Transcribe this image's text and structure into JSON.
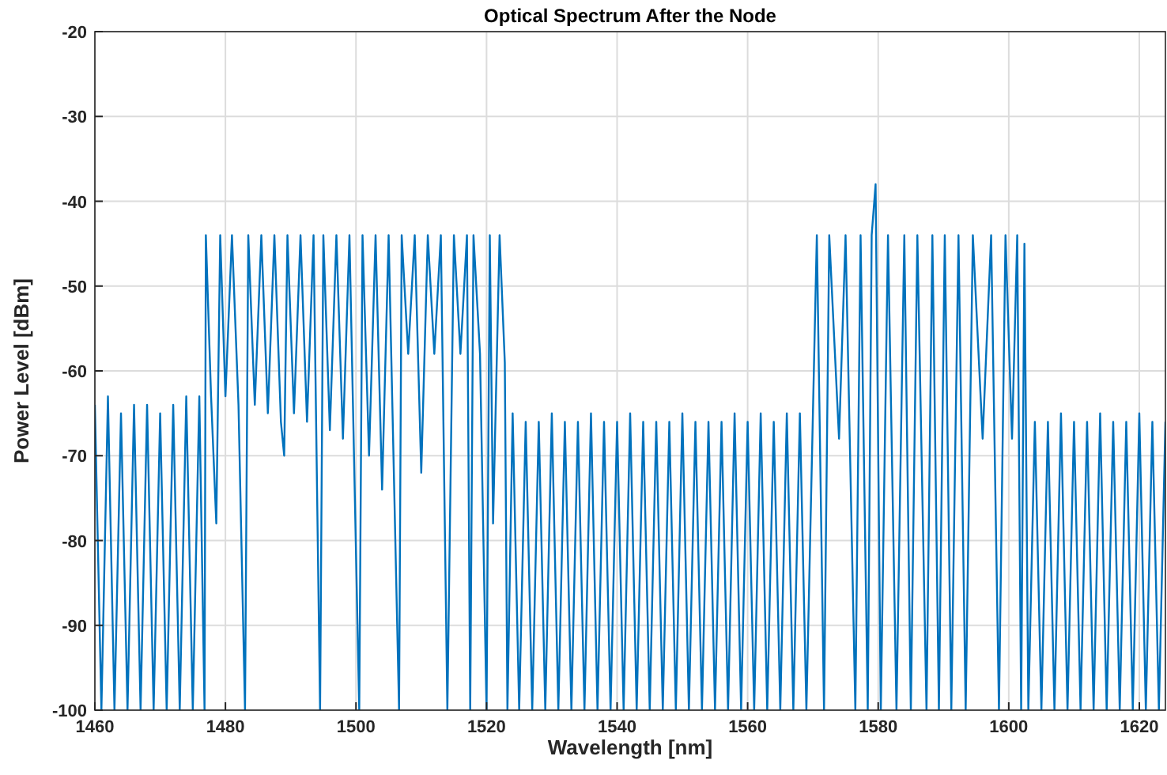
{
  "chart_data": {
    "type": "line",
    "title": "Optical Spectrum After the Node",
    "xlabel": "Wavelength [nm]",
    "ylabel": "Power Level [dBm]",
    "xlim": [
      1460,
      1624
    ],
    "ylim": [
      -100,
      -20
    ],
    "xticks": [
      1460,
      1480,
      1500,
      1520,
      1540,
      1560,
      1580,
      1600,
      1620
    ],
    "yticks": [
      -100,
      -90,
      -80,
      -70,
      -60,
      -50,
      -40,
      -30,
      -20
    ],
    "grid": true,
    "marker": "none",
    "line_style": "solid",
    "series": [
      {
        "color": "#0072bd",
        "x": [
          1460,
          1461,
          1462,
          1463,
          1464,
          1465,
          1466,
          1467,
          1468,
          1469,
          1470,
          1471,
          1472,
          1473,
          1474,
          1475,
          1476,
          1476.8,
          1477,
          1477.8,
          1478.6,
          1479.2,
          1480,
          1481,
          1482,
          1483,
          1483.5,
          1484.5,
          1485.5,
          1486.5,
          1487.5,
          1488.5,
          1489,
          1489.5,
          1490.5,
          1491.5,
          1492.5,
          1493.5,
          1494.5,
          1495,
          1496,
          1497,
          1498,
          1499,
          1500.5,
          1501,
          1502,
          1503,
          1504,
          1505,
          1506.6,
          1507,
          1508,
          1509,
          1510,
          1511,
          1512,
          1513,
          1514,
          1515,
          1516,
          1517,
          1517.5,
          1518,
          1519,
          1520,
          1520.5,
          1521,
          1522,
          1522.8,
          1523.2,
          1524,
          1525,
          1526,
          1527,
          1528,
          1529,
          1530,
          1531,
          1532,
          1533,
          1534,
          1535,
          1536,
          1537,
          1538,
          1539,
          1540,
          1541,
          1542,
          1543,
          1544,
          1545,
          1546,
          1547,
          1548,
          1549,
          1550,
          1551,
          1552,
          1553,
          1554,
          1555,
          1556,
          1557,
          1558,
          1559,
          1560,
          1561,
          1562,
          1563,
          1564,
          1565,
          1566,
          1567,
          1568,
          1569,
          1570,
          1570.6,
          1571.7,
          1572.5,
          1574,
          1575,
          1576.5,
          1577.3,
          1578.4,
          1579,
          1579.6,
          1580.4,
          1581.5,
          1582.8,
          1584,
          1585,
          1586,
          1587.4,
          1588.3,
          1589.3,
          1590.2,
          1591.2,
          1592.3,
          1593.4,
          1594.5,
          1596,
          1597.3,
          1598.5,
          1599.5,
          1600.5,
          1601.3,
          1601.9,
          1602.4,
          1603,
          1604,
          1605,
          1606,
          1607,
          1608,
          1609,
          1610,
          1611,
          1612,
          1613,
          1614,
          1615,
          1616,
          1617,
          1618,
          1619,
          1620,
          1621,
          1622,
          1623,
          1624
        ],
        "values": [
          -64,
          -100,
          -63,
          -100,
          -65,
          -100,
          -64,
          -100,
          -64,
          -100,
          -65,
          -100,
          -64,
          -100,
          -63,
          -100,
          -63,
          -100,
          -44,
          -63,
          -78,
          -44,
          -63,
          -44,
          -64,
          -100,
          -44,
          -64,
          -44,
          -65,
          -44,
          -66,
          -70,
          -44,
          -65,
          -44,
          -66,
          -44,
          -100,
          -44,
          -67,
          -44,
          -68,
          -44,
          -100,
          -44,
          -70,
          -44,
          -74,
          -44,
          -100,
          -44,
          -58,
          -44,
          -72,
          -44,
          -58,
          -44,
          -100,
          -44,
          -58,
          -44,
          -100,
          -44,
          -58,
          -100,
          -44,
          -78,
          -44,
          -59,
          -100,
          -65,
          -100,
          -66,
          -100,
          -66,
          -100,
          -65,
          -100,
          -66,
          -100,
          -66,
          -100,
          -65,
          -100,
          -66,
          -100,
          -66,
          -100,
          -65,
          -100,
          -66,
          -100,
          -66,
          -100,
          -66,
          -100,
          -65,
          -100,
          -66,
          -100,
          -66,
          -100,
          -66,
          -100,
          -65,
          -100,
          -66,
          -100,
          -65,
          -100,
          -66,
          -100,
          -65,
          -100,
          -65,
          -100,
          -65,
          -44,
          -100,
          -44,
          -68,
          -44,
          -100,
          -44,
          -100,
          -44,
          -38,
          -100,
          -44,
          -100,
          -44,
          -100,
          -44,
          -100,
          -44,
          -100,
          -44,
          -100,
          -44,
          -100,
          -44,
          -68,
          -44,
          -100,
          -44,
          -68,
          -44,
          -100,
          -45,
          -100,
          -66,
          -100,
          -66,
          -100,
          -65,
          -100,
          -66,
          -100,
          -66,
          -100,
          -65,
          -100,
          -66,
          -100,
          -66,
          -100,
          -65,
          -100,
          -66,
          -100,
          -66
        ]
      }
    ]
  }
}
